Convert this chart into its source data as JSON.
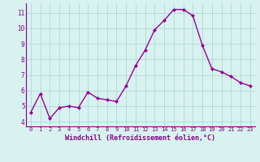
{
  "x": [
    0,
    1,
    2,
    3,
    4,
    5,
    6,
    7,
    8,
    9,
    10,
    11,
    12,
    13,
    14,
    15,
    16,
    17,
    18,
    19,
    20,
    21,
    22,
    23
  ],
  "y": [
    4.6,
    5.8,
    4.2,
    4.9,
    5.0,
    4.9,
    5.9,
    5.5,
    5.4,
    5.3,
    6.3,
    7.6,
    8.6,
    9.9,
    10.5,
    11.2,
    11.2,
    10.8,
    8.9,
    7.4,
    7.2,
    6.9,
    6.5,
    6.3
  ],
  "line_color": "#990099",
  "marker": "D",
  "markersize": 2.0,
  "linewidth": 1.0,
  "xlabel": "Windchill (Refroidissement éolien,°C)",
  "xlabel_fontsize": 6.0,
  "bg_color": "#d8f2f0",
  "grid_color": "#b0d8d8",
  "tick_color": "#880088",
  "label_color": "#880088",
  "xlim": [
    -0.5,
    23.5
  ],
  "ylim": [
    3.7,
    11.6
  ],
  "yticks": [
    4,
    5,
    6,
    7,
    8,
    9,
    10,
    11
  ],
  "xticks": [
    0,
    1,
    2,
    3,
    4,
    5,
    6,
    7,
    8,
    9,
    10,
    11,
    12,
    13,
    14,
    15,
    16,
    17,
    18,
    19,
    20,
    21,
    22,
    23
  ]
}
